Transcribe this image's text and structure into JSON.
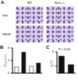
{
  "figure": {
    "panel_a": {
      "label": "A",
      "columns": [
        "WT",
        "Ets1–/–"
      ],
      "rows": [
        "Veh",
        "VEGF"
      ]
    }
  },
  "chart_data": [
    {
      "type": "bar",
      "title": "B",
      "y_label": "Migration",
      "categories": [
        "WT",
        "Ets1–/–"
      ],
      "series": [
        {
          "color": "#ffffff",
          "values": [
            1,
            1.1
          ]
        },
        {
          "color": "#111111",
          "values": [
            3.3,
            1.6
          ]
        }
      ],
      "ylim": [
        0,
        4
      ],
      "yticks": [
        0,
        1,
        2,
        3,
        4
      ]
    },
    {
      "type": "bar",
      "title": "C",
      "y_label": "Fold",
      "categories": [
        "WT",
        "Ets1–/–"
      ],
      "values": [
        2.4,
        1.2
      ],
      "color": "#111111",
      "ylim": [
        0,
        3
      ],
      "yticks": [
        0,
        1,
        2,
        3
      ],
      "annotations": [
        "P < 0.05"
      ]
    }
  ]
}
